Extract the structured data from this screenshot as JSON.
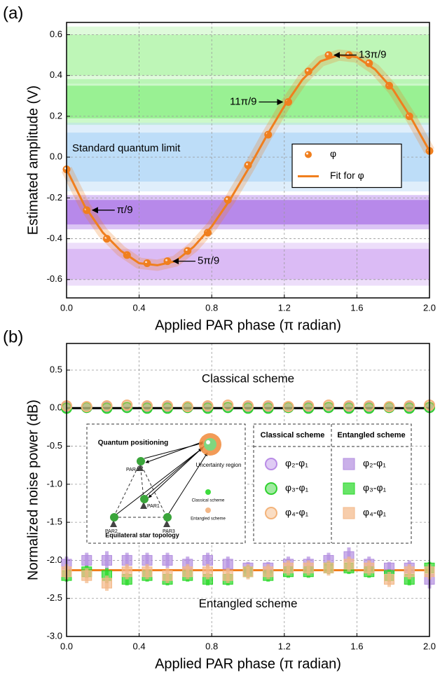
{
  "chart_data": [
    {
      "type": "scatter",
      "panel_label": "(a)",
      "xlabel": "Applied PAR phase (π radian)",
      "ylabel": "Estimated amplitude (V)",
      "xlim": [
        0,
        2
      ],
      "ylim": [
        -0.69,
        0.66
      ],
      "xticks": [
        {
          "value": 0,
          "label": "0.0"
        },
        0.4,
        0.8,
        1.2,
        1.6,
        {
          "value": 2,
          "label": "2.0"
        }
      ],
      "yticks": [
        0.6,
        0.4,
        0.2,
        {
          "value": 0,
          "label": "0.0"
        },
        -0.2,
        -0.4,
        -0.6
      ],
      "grid": true,
      "bands": [
        {
          "color": "#b9f5b0",
          "low": 0.4,
          "high": 0.6
        },
        {
          "color": "#8ff08a",
          "low": 0.19,
          "high": 0.35
        },
        {
          "color": "#b7d9f7",
          "low": -0.12,
          "high": 0.12
        },
        {
          "color": "#b07ee8",
          "low": -0.33,
          "high": -0.21
        },
        {
          "color": "#d7b5f3",
          "low": -0.6,
          "high": -0.45
        }
      ],
      "series": [
        {
          "name": "φ",
          "color": "#f07f1e",
          "mode": "markers",
          "marker": "circle",
          "x": [
            0,
            0.111,
            0.222,
            0.333,
            0.444,
            0.556,
            0.667,
            0.778,
            0.889,
            1,
            1.111,
            1.222,
            1.333,
            1.444,
            1.556,
            1.667,
            1.778,
            1.889,
            2
          ],
          "values": [
            -0.06,
            -0.26,
            -0.4,
            -0.48,
            -0.52,
            -0.51,
            -0.46,
            -0.37,
            -0.21,
            -0.04,
            0.11,
            0.27,
            0.42,
            0.5,
            0.5,
            0.46,
            0.35,
            0.2,
            0.03
          ]
        },
        {
          "name": "Fit for φ",
          "color": "#f07f1e",
          "mode": "line",
          "x": [
            0,
            0.1,
            0.2,
            0.3,
            0.4,
            0.5,
            0.6,
            0.7,
            0.8,
            0.9,
            1,
            1.1,
            1.2,
            1.3,
            1.4,
            1.5,
            1.6,
            1.7,
            1.8,
            1.9,
            2
          ],
          "values": [
            -0.06,
            -0.24,
            -0.37,
            -0.46,
            -0.52,
            -0.53,
            -0.51,
            -0.44,
            -0.34,
            -0.21,
            -0.06,
            0.1,
            0.25,
            0.38,
            0.47,
            0.5,
            0.49,
            0.43,
            0.33,
            0.19,
            0.03
          ]
        }
      ],
      "legend": "center right",
      "annotations": [
        "π/9",
        "5π/9",
        "11π/9",
        "13π/9",
        "Standard quantum limit"
      ]
    },
    {
      "type": "scatter",
      "panel_label": "(b)",
      "xlabel": "Applied PAR phase (π radian)",
      "ylabel": "Normalized noise power (dB)",
      "xlim": [
        0,
        2
      ],
      "ylim": [
        -3,
        0.85
      ],
      "xticks": [
        {
          "value": 0,
          "label": "0.0"
        },
        0.4,
        0.8,
        1.2,
        1.6,
        {
          "value": 2,
          "label": "2.0"
        }
      ],
      "yticks": [
        0.5,
        {
          "value": 0,
          "label": "0.0"
        },
        -0.5,
        {
          "value": -1,
          "label": "-1.0"
        },
        -1.5,
        {
          "value": -2,
          "label": "-2.0"
        },
        -2.5,
        {
          "value": -3,
          "label": "-3.0"
        }
      ],
      "grid": true,
      "x": [
        0,
        0.111,
        0.222,
        0.333,
        0.444,
        0.556,
        0.667,
        0.778,
        0.889,
        1,
        1.111,
        1.222,
        1.333,
        1.444,
        1.556,
        1.667,
        1.778,
        1.889,
        2
      ],
      "reference_lines": [
        {
          "value": 0,
          "color": "#000000"
        },
        {
          "value": -2.13,
          "color": "#f07f1e"
        }
      ],
      "series": [
        {
          "name": "φ₂-φ₁",
          "color": "#b98be6",
          "mode": "markers",
          "marker": "circle",
          "values": [
            0.02,
            0.01,
            0.02,
            0.01,
            0.02,
            0.02,
            0.01,
            0.02,
            0.01,
            0.02,
            0.02,
            0.01,
            0.02,
            0.01,
            0.02,
            0.02,
            0.01,
            0.02,
            0.01
          ]
        },
        {
          "name": "φ₃-φ₁",
          "color": "#2fd12f",
          "mode": "markers",
          "marker": "circle",
          "values": [
            0,
            0.01,
            0,
            0.01,
            0,
            0,
            0.01,
            0,
            0.01,
            0,
            0,
            0.01,
            0,
            0.01,
            0,
            0,
            0.01,
            0,
            0.01
          ]
        },
        {
          "name": "φ₄-φ₁",
          "color": "#f3b37a",
          "mode": "markers",
          "marker": "circle",
          "values": [
            0.03,
            0.02,
            0.03,
            0.04,
            0.03,
            0.03,
            0.02,
            0.03,
            0.04,
            0.03,
            0.03,
            0.02,
            0.03,
            0.04,
            0.03,
            0.03,
            0.02,
            0.03,
            0.04
          ]
        },
        {
          "name": "φ₂-φ₁",
          "color": "#b38ee0",
          "mode": "markers",
          "marker": "square",
          "values": [
            -2.05,
            -2,
            -2,
            -2,
            -2,
            -2,
            -2.05,
            -2,
            -2.05,
            -2.1,
            -2.1,
            -2.05,
            -2.05,
            -2,
            -1.95,
            -2.05,
            -2.1,
            -2.1,
            -2.25
          ],
          "errors": [
            0.1,
            0.1,
            0.12,
            0.1,
            0.1,
            0.1,
            0.1,
            0.1,
            0.1,
            0.08,
            0.08,
            0.1,
            0.1,
            0.1,
            0.12,
            0.1,
            0.08,
            0.1,
            0.12
          ]
        },
        {
          "name": "φ₃-φ₁",
          "color": "#28d828",
          "mode": "markers",
          "marker": "square",
          "values": [
            -2.2,
            -2.15,
            -2.2,
            -2.25,
            -2.2,
            -2.25,
            -2.2,
            -2.25,
            -2.25,
            -2.15,
            -2.2,
            -2.15,
            -2.15,
            -2.1,
            -2.1,
            -2.15,
            -2.2,
            -2.25,
            -2.1
          ],
          "errors": [
            0.08,
            0.08,
            0.1,
            0.08,
            0.08,
            0.08,
            0.08,
            0.08,
            0.08,
            0.08,
            0.08,
            0.08,
            0.08,
            0.08,
            0.08,
            0.08,
            0.08,
            0.08,
            0.08
          ]
        },
        {
          "name": "φ₄-φ₁",
          "color": "#f3b888",
          "mode": "markers",
          "marker": "square",
          "values": [
            -2.15,
            -2.2,
            -2.3,
            -2.15,
            -2.15,
            -2.2,
            -2.15,
            -2.15,
            -2.2,
            -2.15,
            -2.15,
            -2.1,
            -2.1,
            -2.1,
            -2.05,
            -2.1,
            -2.25,
            -2.15,
            -2.15
          ],
          "errors": [
            0.1,
            0.1,
            0.1,
            0.1,
            0.1,
            0.1,
            0.1,
            0.1,
            0.1,
            0.1,
            0.1,
            0.1,
            0.1,
            0.1,
            0.1,
            0.1,
            0.1,
            0.1,
            0.1
          ]
        }
      ],
      "legend_headers": [
        "Classical scheme",
        "Entangled scheme"
      ],
      "annotations": [
        "Classical scheme",
        "Entangled scheme"
      ],
      "inset": {
        "title": "Quantum positioning",
        "caption": "Equilateral star topology",
        "nodes": [
          "PAR1",
          "PAR2",
          "PAR3",
          "PAR4"
        ],
        "region": "Uncertainty region",
        "classical": "Classical scheme",
        "entangled": "Entangled scheme"
      }
    }
  ]
}
